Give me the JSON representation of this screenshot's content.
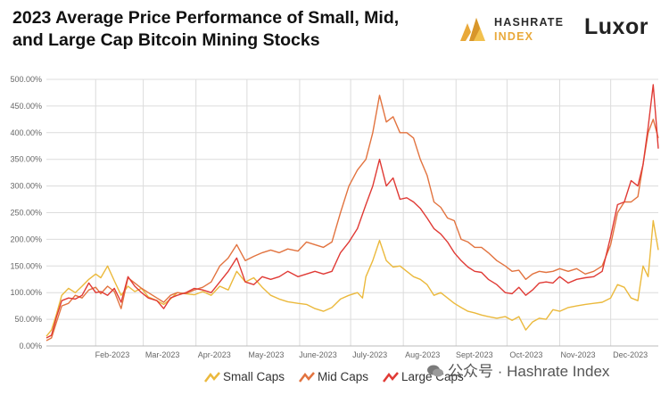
{
  "header": {
    "title_line1": "2023 Average Price Performance of Small, Mid,",
    "title_line2": "and Large Cap Bitcoin Mining Stocks"
  },
  "logos": {
    "hashrate_index_line1": "HASHRATE",
    "hashrate_index_line2": "INDEX",
    "luxor": "Luxor"
  },
  "watermark": "公众号 · Hashrate Index",
  "colors": {
    "small": "#ebb93c",
    "mid": "#e2733f",
    "large": "#e03a35",
    "grid": "#dcdcdc",
    "axis_text": "#666666",
    "hashrate_gold": "#e9a93a"
  },
  "chart_data": {
    "type": "line",
    "title": "2023 Average Price Performance of Small, Mid, and Large Cap Bitcoin Mining Stocks",
    "ylim": [
      0,
      500
    ],
    "y_ticks": [
      0,
      50,
      100,
      150,
      200,
      250,
      300,
      350,
      400,
      450,
      500
    ],
    "y_tick_labels": [
      "0.00%",
      "50.00%",
      "100.00%",
      "150.00%",
      "200.00%",
      "250.00%",
      "300.00%",
      "350.00%",
      "400.00%",
      "450.00%",
      "500.00%"
    ],
    "x_tick_labels": [
      "Feb-2023",
      "Mar-2023",
      "Apr-2023",
      "May-2023",
      "June-2023",
      "July-2023",
      "Aug-2023",
      "Sept-2023",
      "Oct-2023",
      "Nov-2023",
      "Dec-2023"
    ],
    "x_tick_dates": [
      "2023-02-01",
      "2023-03-01",
      "2023-04-01",
      "2023-05-01",
      "2023-06-01",
      "2023-07-01",
      "2023-08-01",
      "2023-09-01",
      "2023-10-01",
      "2023-11-01",
      "2023-12-01"
    ],
    "x_range": [
      "2023-01-03",
      "2023-12-29"
    ],
    "grid": true,
    "legend_position": "bottom",
    "series": [
      {
        "name": "Small Caps",
        "color": "#ebb93c",
        "points": [
          [
            "2023-01-03",
            18
          ],
          [
            "2023-01-06",
            30
          ],
          [
            "2023-01-09",
            60
          ],
          [
            "2023-01-12",
            95
          ],
          [
            "2023-01-16",
            108
          ],
          [
            "2023-01-20",
            100
          ],
          [
            "2023-01-24",
            112
          ],
          [
            "2023-01-28",
            125
          ],
          [
            "2023-02-01",
            135
          ],
          [
            "2023-02-04",
            128
          ],
          [
            "2023-02-08",
            150
          ],
          [
            "2023-02-12",
            122
          ],
          [
            "2023-02-16",
            95
          ],
          [
            "2023-02-20",
            112
          ],
          [
            "2023-02-24",
            102
          ],
          [
            "2023-02-28",
            108
          ],
          [
            "2023-03-04",
            92
          ],
          [
            "2023-03-09",
            85
          ],
          [
            "2023-03-13",
            78
          ],
          [
            "2023-03-17",
            88
          ],
          [
            "2023-03-21",
            100
          ],
          [
            "2023-03-26",
            98
          ],
          [
            "2023-03-31",
            96
          ],
          [
            "2023-04-05",
            102
          ],
          [
            "2023-04-10",
            95
          ],
          [
            "2023-04-15",
            112
          ],
          [
            "2023-04-20",
            105
          ],
          [
            "2023-04-25",
            140
          ],
          [
            "2023-04-30",
            120
          ],
          [
            "2023-05-05",
            128
          ],
          [
            "2023-05-10",
            110
          ],
          [
            "2023-05-15",
            95
          ],
          [
            "2023-05-20",
            88
          ],
          [
            "2023-05-25",
            83
          ],
          [
            "2023-05-31",
            80
          ],
          [
            "2023-06-05",
            78
          ],
          [
            "2023-06-10",
            70
          ],
          [
            "2023-06-15",
            65
          ],
          [
            "2023-06-20",
            72
          ],
          [
            "2023-06-25",
            88
          ],
          [
            "2023-06-30",
            95
          ],
          [
            "2023-07-05",
            100
          ],
          [
            "2023-07-08",
            90
          ],
          [
            "2023-07-10",
            130
          ],
          [
            "2023-07-14",
            160
          ],
          [
            "2023-07-18",
            198
          ],
          [
            "2023-07-22",
            160
          ],
          [
            "2023-07-26",
            148
          ],
          [
            "2023-07-30",
            150
          ],
          [
            "2023-08-03",
            140
          ],
          [
            "2023-08-07",
            130
          ],
          [
            "2023-08-11",
            125
          ],
          [
            "2023-08-15",
            115
          ],
          [
            "2023-08-19",
            95
          ],
          [
            "2023-08-23",
            100
          ],
          [
            "2023-08-27",
            90
          ],
          [
            "2023-08-31",
            80
          ],
          [
            "2023-09-04",
            72
          ],
          [
            "2023-09-08",
            65
          ],
          [
            "2023-09-12",
            62
          ],
          [
            "2023-09-16",
            58
          ],
          [
            "2023-09-20",
            55
          ],
          [
            "2023-09-25",
            52
          ],
          [
            "2023-09-30",
            55
          ],
          [
            "2023-10-04",
            48
          ],
          [
            "2023-10-08",
            55
          ],
          [
            "2023-10-12",
            30
          ],
          [
            "2023-10-16",
            45
          ],
          [
            "2023-10-20",
            52
          ],
          [
            "2023-10-24",
            50
          ],
          [
            "2023-10-28",
            68
          ],
          [
            "2023-11-01",
            65
          ],
          [
            "2023-11-06",
            72
          ],
          [
            "2023-11-11",
            75
          ],
          [
            "2023-11-16",
            78
          ],
          [
            "2023-11-21",
            80
          ],
          [
            "2023-11-26",
            82
          ],
          [
            "2023-12-01",
            90
          ],
          [
            "2023-12-05",
            115
          ],
          [
            "2023-12-09",
            110
          ],
          [
            "2023-12-13",
            90
          ],
          [
            "2023-12-17",
            85
          ],
          [
            "2023-12-20",
            150
          ],
          [
            "2023-12-23",
            130
          ],
          [
            "2023-12-26",
            235
          ],
          [
            "2023-12-29",
            180
          ]
        ]
      },
      {
        "name": "Mid Caps",
        "color": "#e2733f",
        "points": [
          [
            "2023-01-03",
            10
          ],
          [
            "2023-01-06",
            15
          ],
          [
            "2023-01-09",
            45
          ],
          [
            "2023-01-12",
            75
          ],
          [
            "2023-01-16",
            80
          ],
          [
            "2023-01-20",
            95
          ],
          [
            "2023-01-24",
            90
          ],
          [
            "2023-01-28",
            105
          ],
          [
            "2023-02-01",
            110
          ],
          [
            "2023-02-04",
            98
          ],
          [
            "2023-02-08",
            112
          ],
          [
            "2023-02-12",
            102
          ],
          [
            "2023-02-16",
            70
          ],
          [
            "2023-02-20",
            128
          ],
          [
            "2023-02-24",
            118
          ],
          [
            "2023-02-28",
            108
          ],
          [
            "2023-03-04",
            100
          ],
          [
            "2023-03-09",
            90
          ],
          [
            "2023-03-13",
            82
          ],
          [
            "2023-03-17",
            95
          ],
          [
            "2023-03-21",
            100
          ],
          [
            "2023-03-26",
            98
          ],
          [
            "2023-03-31",
            105
          ],
          [
            "2023-04-05",
            110
          ],
          [
            "2023-04-10",
            120
          ],
          [
            "2023-04-15",
            150
          ],
          [
            "2023-04-20",
            165
          ],
          [
            "2023-04-25",
            190
          ],
          [
            "2023-04-30",
            160
          ],
          [
            "2023-05-05",
            168
          ],
          [
            "2023-05-10",
            175
          ],
          [
            "2023-05-15",
            180
          ],
          [
            "2023-05-20",
            175
          ],
          [
            "2023-05-25",
            182
          ],
          [
            "2023-05-31",
            178
          ],
          [
            "2023-06-05",
            195
          ],
          [
            "2023-06-10",
            190
          ],
          [
            "2023-06-15",
            185
          ],
          [
            "2023-06-20",
            195
          ],
          [
            "2023-06-25",
            250
          ],
          [
            "2023-06-30",
            300
          ],
          [
            "2023-07-05",
            330
          ],
          [
            "2023-07-10",
            350
          ],
          [
            "2023-07-14",
            400
          ],
          [
            "2023-07-18",
            470
          ],
          [
            "2023-07-22",
            420
          ],
          [
            "2023-07-26",
            430
          ],
          [
            "2023-07-30",
            400
          ],
          [
            "2023-08-03",
            400
          ],
          [
            "2023-08-07",
            390
          ],
          [
            "2023-08-11",
            350
          ],
          [
            "2023-08-15",
            320
          ],
          [
            "2023-08-19",
            270
          ],
          [
            "2023-08-23",
            260
          ],
          [
            "2023-08-27",
            240
          ],
          [
            "2023-08-31",
            235
          ],
          [
            "2023-09-04",
            200
          ],
          [
            "2023-09-08",
            195
          ],
          [
            "2023-09-12",
            185
          ],
          [
            "2023-09-16",
            185
          ],
          [
            "2023-09-20",
            175
          ],
          [
            "2023-09-25",
            160
          ],
          [
            "2023-09-30",
            150
          ],
          [
            "2023-10-04",
            140
          ],
          [
            "2023-10-08",
            142
          ],
          [
            "2023-10-12",
            125
          ],
          [
            "2023-10-16",
            135
          ],
          [
            "2023-10-20",
            140
          ],
          [
            "2023-10-24",
            138
          ],
          [
            "2023-10-28",
            140
          ],
          [
            "2023-11-01",
            145
          ],
          [
            "2023-11-06",
            140
          ],
          [
            "2023-11-11",
            145
          ],
          [
            "2023-11-16",
            135
          ],
          [
            "2023-11-21",
            140
          ],
          [
            "2023-11-26",
            150
          ],
          [
            "2023-12-01",
            190
          ],
          [
            "2023-12-05",
            250
          ],
          [
            "2023-12-09",
            270
          ],
          [
            "2023-12-13",
            270
          ],
          [
            "2023-12-17",
            280
          ],
          [
            "2023-12-20",
            340
          ],
          [
            "2023-12-23",
            400
          ],
          [
            "2023-12-26",
            425
          ],
          [
            "2023-12-29",
            390
          ]
        ]
      },
      {
        "name": "Large Caps",
        "color": "#e03a35",
        "points": [
          [
            "2023-01-03",
            15
          ],
          [
            "2023-01-06",
            20
          ],
          [
            "2023-01-09",
            55
          ],
          [
            "2023-01-12",
            85
          ],
          [
            "2023-01-16",
            90
          ],
          [
            "2023-01-20",
            88
          ],
          [
            "2023-01-24",
            95
          ],
          [
            "2023-01-28",
            118
          ],
          [
            "2023-02-01",
            100
          ],
          [
            "2023-02-04",
            102
          ],
          [
            "2023-02-08",
            95
          ],
          [
            "2023-02-12",
            108
          ],
          [
            "2023-02-16",
            82
          ],
          [
            "2023-02-20",
            130
          ],
          [
            "2023-02-24",
            112
          ],
          [
            "2023-02-28",
            100
          ],
          [
            "2023-03-04",
            90
          ],
          [
            "2023-03-09",
            85
          ],
          [
            "2023-03-13",
            70
          ],
          [
            "2023-03-17",
            90
          ],
          [
            "2023-03-21",
            95
          ],
          [
            "2023-03-26",
            100
          ],
          [
            "2023-03-31",
            108
          ],
          [
            "2023-04-05",
            105
          ],
          [
            "2023-04-10",
            100
          ],
          [
            "2023-04-15",
            120
          ],
          [
            "2023-04-20",
            140
          ],
          [
            "2023-04-25",
            165
          ],
          [
            "2023-04-30",
            120
          ],
          [
            "2023-05-05",
            115
          ],
          [
            "2023-05-10",
            130
          ],
          [
            "2023-05-15",
            125
          ],
          [
            "2023-05-20",
            130
          ],
          [
            "2023-05-25",
            140
          ],
          [
            "2023-05-31",
            130
          ],
          [
            "2023-06-05",
            135
          ],
          [
            "2023-06-10",
            140
          ],
          [
            "2023-06-15",
            135
          ],
          [
            "2023-06-20",
            140
          ],
          [
            "2023-06-25",
            175
          ],
          [
            "2023-06-30",
            195
          ],
          [
            "2023-07-05",
            220
          ],
          [
            "2023-07-10",
            265
          ],
          [
            "2023-07-14",
            300
          ],
          [
            "2023-07-18",
            350
          ],
          [
            "2023-07-22",
            300
          ],
          [
            "2023-07-26",
            315
          ],
          [
            "2023-07-30",
            275
          ],
          [
            "2023-08-03",
            278
          ],
          [
            "2023-08-07",
            270
          ],
          [
            "2023-08-11",
            258
          ],
          [
            "2023-08-15",
            240
          ],
          [
            "2023-08-19",
            220
          ],
          [
            "2023-08-23",
            210
          ],
          [
            "2023-08-27",
            195
          ],
          [
            "2023-08-31",
            175
          ],
          [
            "2023-09-04",
            160
          ],
          [
            "2023-09-08",
            148
          ],
          [
            "2023-09-12",
            140
          ],
          [
            "2023-09-16",
            138
          ],
          [
            "2023-09-20",
            125
          ],
          [
            "2023-09-25",
            115
          ],
          [
            "2023-09-30",
            100
          ],
          [
            "2023-10-04",
            98
          ],
          [
            "2023-10-08",
            110
          ],
          [
            "2023-10-12",
            95
          ],
          [
            "2023-10-16",
            105
          ],
          [
            "2023-10-20",
            118
          ],
          [
            "2023-10-24",
            120
          ],
          [
            "2023-10-28",
            118
          ],
          [
            "2023-11-01",
            130
          ],
          [
            "2023-11-06",
            118
          ],
          [
            "2023-11-11",
            125
          ],
          [
            "2023-11-16",
            128
          ],
          [
            "2023-11-21",
            130
          ],
          [
            "2023-11-26",
            140
          ],
          [
            "2023-12-01",
            205
          ],
          [
            "2023-12-05",
            265
          ],
          [
            "2023-12-09",
            270
          ],
          [
            "2023-12-13",
            310
          ],
          [
            "2023-12-17",
            300
          ],
          [
            "2023-12-20",
            340
          ],
          [
            "2023-12-23",
            410
          ],
          [
            "2023-12-26",
            490
          ],
          [
            "2023-12-29",
            370
          ]
        ]
      }
    ]
  }
}
